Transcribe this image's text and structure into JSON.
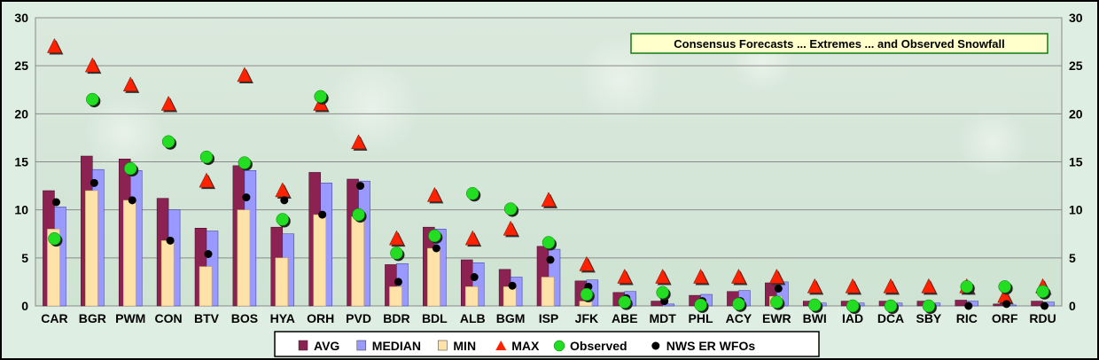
{
  "chart_data": {
    "type": "bar",
    "title": "Consensus Forecasts ... Extremes ... and Observed Snowfall",
    "ylim": [
      0,
      30
    ],
    "yticks": [
      0,
      5,
      10,
      15,
      20,
      25,
      30
    ],
    "grid": true,
    "legend_placement": "bottom",
    "categories": [
      "CAR",
      "BGR",
      "PWM",
      "CON",
      "BTV",
      "BOS",
      "HYA",
      "ORH",
      "PVD",
      "BDR",
      "BDL",
      "ALB",
      "BGM",
      "ISP",
      "JFK",
      "ABE",
      "MDT",
      "PHL",
      "ACY",
      "EWR",
      "BWI",
      "IAD",
      "DCA",
      "SBY",
      "RIC",
      "ORF",
      "RDU"
    ],
    "series": [
      {
        "name": "AVG",
        "kind": "bar",
        "color": "#8b2252",
        "values": [
          12.0,
          15.6,
          15.3,
          11.2,
          8.1,
          14.6,
          8.2,
          13.9,
          13.2,
          4.3,
          8.2,
          4.8,
          3.8,
          6.2,
          2.6,
          1.4,
          0.5,
          1.1,
          1.5,
          2.4,
          0.5,
          0.5,
          0.5,
          0.5,
          0.6,
          0.2,
          0.5
        ]
      },
      {
        "name": "MEDIAN",
        "kind": "bar",
        "color": "#9999ff",
        "values": [
          10.3,
          14.2,
          14.1,
          10.0,
          7.8,
          14.1,
          7.5,
          12.8,
          13.0,
          4.4,
          8.0,
          4.5,
          3.0,
          5.9,
          2.7,
          1.5,
          0.2,
          1.2,
          1.6,
          2.5,
          0.3,
          0.3,
          0.3,
          0.3,
          0.5,
          0.1,
          0.4
        ]
      },
      {
        "name": "MIN",
        "kind": "bar",
        "color": "#ffe2a8",
        "values": [
          8.0,
          12.0,
          11.0,
          6.8,
          4.1,
          10.0,
          5.0,
          9.5,
          9.3,
          2.0,
          6.0,
          2.0,
          2.0,
          3.0,
          0.5,
          0.0,
          0.0,
          0.0,
          0.0,
          1.0,
          0.0,
          0.0,
          0.0,
          0.0,
          0.0,
          0.0,
          0.0
        ]
      },
      {
        "name": "MAX",
        "kind": "triangle",
        "color": "#ff2200",
        "values": [
          27.0,
          25.0,
          23.0,
          21.0,
          13.0,
          24.0,
          12.0,
          21.0,
          17.0,
          7.0,
          11.5,
          7.0,
          8.0,
          11.0,
          4.3,
          3.0,
          3.0,
          3.0,
          3.0,
          3.0,
          2.0,
          2.0,
          2.0,
          2.0,
          2.0,
          1.0,
          2.0
        ]
      },
      {
        "name": "Observed",
        "kind": "circle",
        "color": "#22dd22",
        "values": [
          7.0,
          21.5,
          14.3,
          17.1,
          15.5,
          14.9,
          9.0,
          21.8,
          9.5,
          5.5,
          7.3,
          11.7,
          10.1,
          6.6,
          1.2,
          0.4,
          1.4,
          0.1,
          0.2,
          0.4,
          0.1,
          0.0,
          0.0,
          0.0,
          2.0,
          2.0,
          1.5
        ]
      },
      {
        "name": "NWS ER WFOs",
        "kind": "dot",
        "color": "#000000",
        "values": [
          10.8,
          12.8,
          11.0,
          6.8,
          5.4,
          11.3,
          11.0,
          9.5,
          12.5,
          2.5,
          6.0,
          3.0,
          2.1,
          4.8,
          2.0,
          0.8,
          0.5,
          0.5,
          0.5,
          1.8,
          0.2,
          0.1,
          0.0,
          0.1,
          0.0,
          0.2,
          0.0
        ]
      }
    ]
  }
}
